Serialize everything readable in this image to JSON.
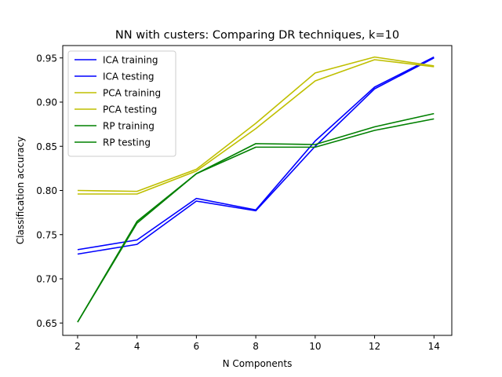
{
  "chart_data": {
    "type": "line",
    "title": "NN with custers: Comparing DR techniques, k=10",
    "xlabel": "N Components",
    "ylabel": "Classification accuracy",
    "x": [
      2,
      4,
      6,
      8,
      10,
      12,
      14
    ],
    "xlim": [
      1.5,
      14.6
    ],
    "ylim": [
      0.636,
      0.964
    ],
    "xticks": [
      2,
      4,
      6,
      8,
      10,
      12,
      14
    ],
    "yticks": [
      0.65,
      0.7,
      0.75,
      0.8,
      0.85,
      0.9,
      0.95
    ],
    "ytick_labels": [
      "0.65",
      "0.70",
      "0.75",
      "0.80",
      "0.85",
      "0.90",
      "0.95"
    ],
    "grid": false,
    "legend_position": "top-left",
    "series": [
      {
        "name": "ICA training",
        "color": "#0000ff",
        "values": [
          0.733,
          0.744,
          0.791,
          0.778,
          0.856,
          0.917,
          0.951
        ]
      },
      {
        "name": "ICA testing",
        "color": "#0000ff",
        "values": [
          0.728,
          0.739,
          0.788,
          0.777,
          0.85,
          0.915,
          0.95
        ]
      },
      {
        "name": "PCA training",
        "color": "#bfbf00",
        "values": [
          0.8,
          0.799,
          0.824,
          0.876,
          0.933,
          0.951,
          0.941
        ]
      },
      {
        "name": "PCA testing",
        "color": "#bfbf00",
        "values": [
          0.796,
          0.796,
          0.822,
          0.87,
          0.924,
          0.948,
          0.94
        ]
      },
      {
        "name": "RP training",
        "color": "#008000",
        "values": [
          0.651,
          0.765,
          0.819,
          0.853,
          0.852,
          0.872,
          0.887
        ]
      },
      {
        "name": "RP testing",
        "color": "#008000",
        "values": [
          0.651,
          0.763,
          0.819,
          0.849,
          0.849,
          0.868,
          0.881
        ]
      }
    ]
  }
}
